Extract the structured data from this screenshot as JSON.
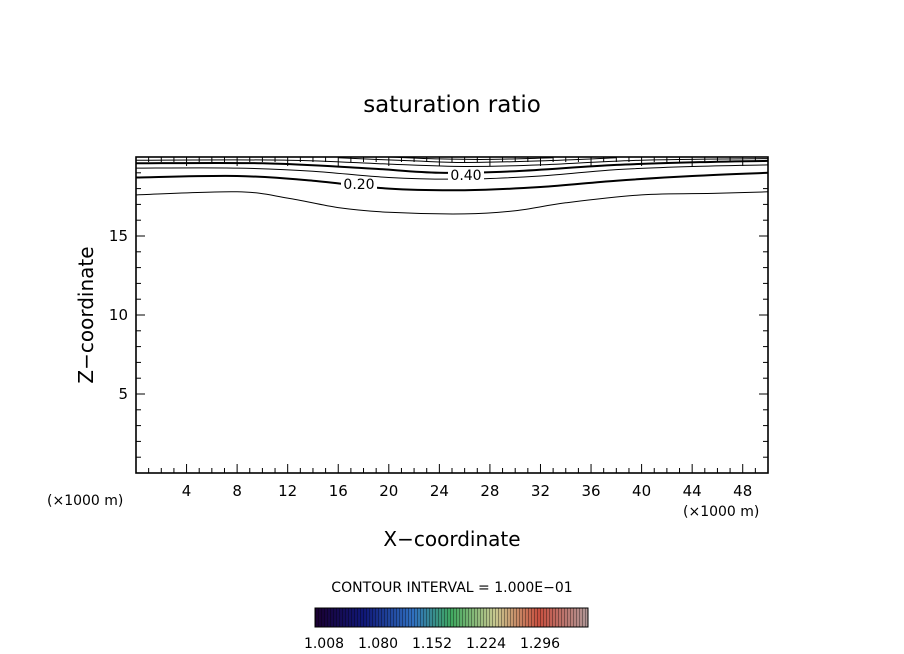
{
  "chart_data": {
    "type": "contour",
    "title": "saturation ratio",
    "xlabel": "X−coordinate",
    "ylabel": "Z−coordinate",
    "x_unit": "(×1000 m)",
    "y_unit": "(×1000 m)",
    "xlim": [
      0,
      50
    ],
    "ylim": [
      0,
      20
    ],
    "x_ticks": [
      4,
      8,
      12,
      16,
      20,
      24,
      28,
      32,
      36,
      40,
      44,
      48
    ],
    "x_tick_labels": [
      "4",
      "8",
      "12",
      "16",
      "20",
      "24",
      "28",
      "32",
      "36",
      "40",
      "44",
      "48"
    ],
    "y_ticks": [
      5,
      10,
      15
    ],
    "y_tick_labels": [
      "5",
      "10",
      "15"
    ],
    "contour_interval_text": "CONTOUR INTERVAL = 1.000E−01",
    "colorbar_ticks": [
      "1.008",
      "1.080",
      "1.152",
      "1.224",
      "1.296"
    ],
    "contours": [
      {
        "level": 0.1,
        "label": "",
        "bold": false,
        "points": [
          [
            0,
            17.6
          ],
          [
            8,
            17.8
          ],
          [
            12,
            17.4
          ],
          [
            16,
            16.8
          ],
          [
            20,
            16.5
          ],
          [
            26,
            16.4
          ],
          [
            30,
            16.6
          ],
          [
            34,
            17.1
          ],
          [
            40,
            17.6
          ],
          [
            46,
            17.7
          ],
          [
            50,
            17.8
          ]
        ]
      },
      {
        "level": 0.2,
        "label": "0.20",
        "bold": true,
        "points": [
          [
            0,
            18.7
          ],
          [
            8,
            18.8
          ],
          [
            14,
            18.5
          ],
          [
            20,
            18.0
          ],
          [
            26,
            17.9
          ],
          [
            32,
            18.1
          ],
          [
            38,
            18.5
          ],
          [
            44,
            18.8
          ],
          [
            50,
            19.0
          ]
        ]
      },
      {
        "level": 0.3,
        "label": "",
        "bold": false,
        "points": [
          [
            0,
            19.3
          ],
          [
            8,
            19.3
          ],
          [
            14,
            19.1
          ],
          [
            20,
            18.7
          ],
          [
            26,
            18.6
          ],
          [
            32,
            18.8
          ],
          [
            38,
            19.2
          ],
          [
            44,
            19.4
          ],
          [
            50,
            19.5
          ]
        ]
      },
      {
        "level": 0.4,
        "label": "0.40",
        "bold": true,
        "points": [
          [
            0,
            19.6
          ],
          [
            10,
            19.6
          ],
          [
            18,
            19.3
          ],
          [
            24,
            19.0
          ],
          [
            30,
            19.1
          ],
          [
            38,
            19.5
          ],
          [
            46,
            19.7
          ],
          [
            50,
            19.75
          ]
        ]
      },
      {
        "level": 0.5,
        "label": "",
        "bold": false,
        "points": [
          [
            0,
            19.8
          ],
          [
            12,
            19.8
          ],
          [
            20,
            19.55
          ],
          [
            26,
            19.4
          ],
          [
            32,
            19.5
          ],
          [
            40,
            19.8
          ],
          [
            50,
            19.9
          ]
        ]
      },
      {
        "level": 0.6,
        "label": "",
        "bold": false,
        "points": [
          [
            16,
            19.95
          ],
          [
            22,
            19.75
          ],
          [
            26,
            19.65
          ],
          [
            32,
            19.75
          ],
          [
            38,
            19.95
          ]
        ]
      },
      {
        "level": 0.7,
        "label": "",
        "bold": false,
        "points": [
          [
            20,
            20.0
          ],
          [
            24,
            19.88
          ],
          [
            28,
            19.85
          ],
          [
            33,
            19.95
          ]
        ]
      }
    ],
    "grid": false,
    "legend": "colorbar-bottom"
  }
}
